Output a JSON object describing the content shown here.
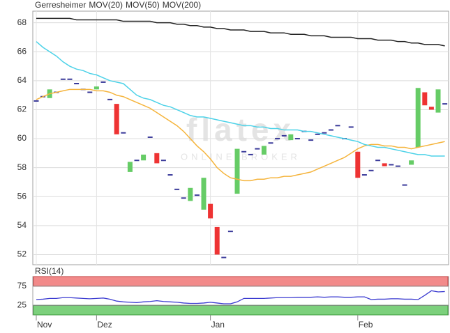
{
  "chart_data": [
    {
      "type": "candlestick",
      "title": "Gerresheimer",
      "title_color": "#e8604c",
      "watermark": [
        "flatex",
        "ONLINE BROKER"
      ],
      "categories": [
        "Nov",
        null,
        null,
        null,
        null,
        null,
        null,
        null,
        null,
        "Dez",
        null,
        null,
        null,
        null,
        null,
        null,
        null,
        null,
        null,
        null,
        null,
        null,
        null,
        null,
        null,
        null,
        "Jan",
        null,
        null,
        null,
        null,
        null,
        null,
        null,
        null,
        null,
        null,
        null,
        null,
        null,
        null,
        null,
        null,
        null,
        null,
        null,
        null,
        null,
        "Feb",
        null,
        null,
        null,
        null,
        null,
        null,
        null,
        null,
        null,
        null,
        null,
        null,
        null
      ],
      "open": [
        62.6,
        62.9,
        62.8,
        63.2,
        64.1,
        64.1,
        63.8,
        63.4,
        63.2,
        63.4,
        63.9,
        62.7,
        62.4,
        60.4,
        57.7,
        58.5,
        58.5,
        60.1,
        59.0,
        58.5,
        57.5,
        56.5,
        55.9,
        55.7,
        56.1,
        55.1,
        55.5,
        53.9,
        51.8,
        53.6,
        56.2,
        59.1,
        58.9,
        59.3,
        58.9,
        59.7,
        60.0,
        60.2,
        59.9,
        60.0,
        60.5,
        59.9,
        60.3,
        60.4,
        60.6,
        60.9,
        60.0,
        60.8,
        59.1,
        57.5,
        57.8,
        58.5,
        58.3,
        58.2,
        58.1,
        56.8,
        58.2,
        59.4,
        63.2,
        62.2,
        61.8,
        62.4
      ],
      "close": [
        62.6,
        62.9,
        63.4,
        63.2,
        64.1,
        64.1,
        63.8,
        63.4,
        63.2,
        63.6,
        63.9,
        62.7,
        60.3,
        60.4,
        58.4,
        58.5,
        58.9,
        60.1,
        58.3,
        58.5,
        57.5,
        56.5,
        55.9,
        56.6,
        56.1,
        57.3,
        54.5,
        52.0,
        51.8,
        53.6,
        59.3,
        59.1,
        58.9,
        59.3,
        59.5,
        59.7,
        60.0,
        60.2,
        60.3,
        60.0,
        60.5,
        59.9,
        60.3,
        60.4,
        60.6,
        60.9,
        60.0,
        60.8,
        57.3,
        57.5,
        57.8,
        58.5,
        58.1,
        58.2,
        58.1,
        56.8,
        58.5,
        63.5,
        62.3,
        62.0,
        63.4,
        62.4
      ],
      "up_color": "#66cc66",
      "down_color": "#ee3333",
      "flat_color": "#3a3a9a",
      "series": [
        {
          "name": "MOV(20)",
          "color": "#f5b43c",
          "values": [
            62.7,
            62.9,
            63.1,
            63.2,
            63.3,
            63.4,
            63.4,
            63.4,
            63.4,
            63.3,
            63.3,
            63.2,
            63.0,
            62.9,
            62.7,
            62.5,
            62.3,
            62.1,
            61.8,
            61.5,
            61.2,
            60.9,
            60.5,
            60.0,
            59.5,
            59.1,
            58.6,
            58.0,
            57.6,
            57.3,
            57.2,
            57.1,
            57.1,
            57.2,
            57.2,
            57.3,
            57.3,
            57.4,
            57.4,
            57.5,
            57.6,
            57.7,
            57.9,
            58.1,
            58.3,
            58.5,
            58.7,
            59.0,
            59.3,
            59.5,
            59.6,
            59.6,
            59.5,
            59.5,
            59.4,
            59.4,
            59.3,
            59.4,
            59.5,
            59.6,
            59.7,
            59.8
          ]
        },
        {
          "name": "MOV(50)",
          "color": "#4dd2e8",
          "values": [
            66.7,
            66.3,
            66.0,
            65.7,
            65.3,
            65.0,
            64.8,
            64.7,
            64.5,
            64.4,
            64.2,
            64.0,
            63.9,
            63.8,
            63.4,
            63.0,
            62.8,
            62.7,
            62.5,
            62.3,
            62.2,
            62.0,
            61.8,
            61.6,
            61.5,
            61.5,
            61.4,
            61.3,
            61.2,
            61.1,
            61.0,
            60.9,
            60.9,
            60.8,
            60.8,
            60.7,
            60.7,
            60.6,
            60.6,
            60.6,
            60.5,
            60.5,
            60.4,
            60.3,
            60.2,
            60.1,
            60.0,
            59.9,
            59.8,
            59.6,
            59.5,
            59.4,
            59.4,
            59.3,
            59.2,
            59.1,
            59.0,
            58.9,
            58.9,
            58.8,
            58.8,
            58.8
          ]
        },
        {
          "name": "MOV(200)",
          "color": "#222222",
          "values": [
            68.3,
            68.3,
            68.3,
            68.3,
            68.3,
            68.3,
            68.2,
            68.2,
            68.2,
            68.2,
            68.2,
            68.2,
            68.2,
            68.1,
            68.1,
            68.1,
            68.1,
            68.1,
            68.0,
            68.0,
            68.0,
            67.9,
            67.9,
            67.8,
            67.8,
            67.7,
            67.7,
            67.6,
            67.6,
            67.5,
            67.5,
            67.5,
            67.4,
            67.4,
            67.4,
            67.3,
            67.3,
            67.3,
            67.2,
            67.2,
            67.2,
            67.1,
            67.1,
            67.1,
            67.0,
            67.0,
            67.0,
            67.0,
            66.9,
            66.9,
            66.9,
            66.8,
            66.8,
            66.8,
            66.7,
            66.7,
            66.6,
            66.6,
            66.5,
            66.5,
            66.5,
            66.4
          ]
        }
      ],
      "ylim": [
        51.3,
        68.8
      ],
      "yticks": [
        52,
        54,
        56,
        58,
        60,
        62,
        64,
        66,
        68
      ],
      "grid": true
    },
    {
      "type": "line",
      "title": "RSI(14)",
      "color": "#3a3ad0",
      "upper_band_color": "#f28a8a",
      "lower_band_color": "#7cd07c",
      "values": [
        40,
        41,
        43,
        43,
        45,
        45,
        44,
        43,
        42,
        43,
        44,
        41,
        36,
        34,
        33,
        32,
        34,
        35,
        37,
        35,
        34,
        33,
        31,
        30,
        30,
        31,
        33,
        31,
        29,
        29,
        34,
        43,
        43,
        43,
        43,
        44,
        45,
        45,
        45,
        46,
        46,
        46,
        47,
        46,
        47,
        47,
        46,
        46,
        47,
        47,
        40,
        41,
        41,
        42,
        42,
        41,
        41,
        40,
        51,
        63,
        60,
        61
      ],
      "ylim": [
        0,
        100
      ],
      "yticks": [
        25,
        75
      ]
    }
  ]
}
